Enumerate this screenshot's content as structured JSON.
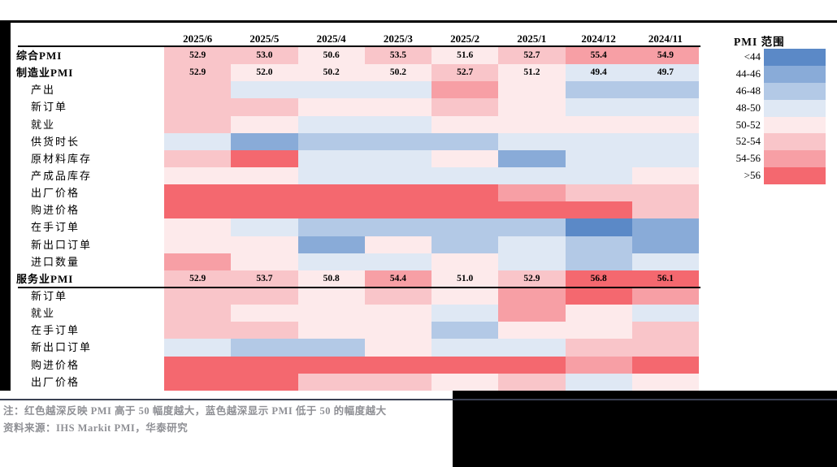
{
  "palette": {
    "b4": "#5b89c7",
    "b3": "#89abd8",
    "b2": "#b3c9e6",
    "b1": "#dfe8f4",
    "r1": "#fdeaeb",
    "r2": "#f9c5c9",
    "r3": "#f79fa5",
    "r4": "#f4686f"
  },
  "chart_data": {
    "type": "heatmap",
    "title": "",
    "columns": [
      "2025/6",
      "2025/5",
      "2025/4",
      "2025/3",
      "2025/2",
      "2025/1",
      "2024/12",
      "2024/11"
    ],
    "bin_labels": {
      "b4": "<44",
      "b3": "44-46",
      "b2": "46-48",
      "b1": "48-50",
      "r1": "50-52",
      "r2": "52-54",
      "r3": "54-56",
      "r4": ">56"
    },
    "rows": [
      {
        "label": "综合PMI",
        "bold": true,
        "values": [
          "52.9",
          "53.0",
          "50.6",
          "53.5",
          "51.6",
          "52.7",
          "55.4",
          "54.9"
        ],
        "classes": [
          "r2",
          "r2",
          "r1",
          "r2",
          "r1",
          "r2",
          "r3",
          "r3"
        ]
      },
      {
        "label": "制造业PMI",
        "bold": true,
        "values": [
          "52.9",
          "52.0",
          "50.2",
          "50.2",
          "52.7",
          "51.2",
          "49.4",
          "49.7"
        ],
        "classes": [
          "r2",
          "r1",
          "r1",
          "r1",
          "r2",
          "r1",
          "b1",
          "b1"
        ]
      },
      {
        "label": "产出",
        "bold": false,
        "values": null,
        "classes": [
          "r2",
          "b1",
          "b1",
          "b1",
          "r3",
          "r1",
          "b2",
          "b2"
        ]
      },
      {
        "label": "新订单",
        "bold": false,
        "values": null,
        "classes": [
          "r2",
          "r2",
          "r1",
          "r1",
          "r2",
          "r1",
          "b1",
          "b1"
        ]
      },
      {
        "label": "就业",
        "bold": false,
        "values": null,
        "classes": [
          "r2",
          "r1",
          "b1",
          "b1",
          "r1",
          "r1",
          "r1",
          "r1"
        ]
      },
      {
        "label": "供货时长",
        "bold": false,
        "values": null,
        "classes": [
          "b1",
          "b3",
          "b2",
          "b2",
          "b2",
          "b1",
          "b1",
          "b1"
        ]
      },
      {
        "label": "原材料库存",
        "bold": false,
        "values": null,
        "classes": [
          "r2",
          "r4",
          "b1",
          "b1",
          "r1",
          "b3",
          "b1",
          "b1"
        ]
      },
      {
        "label": "产成品库存",
        "bold": false,
        "values": null,
        "classes": [
          "r1",
          "r1",
          "b1",
          "b1",
          "b1",
          "b1",
          "b1",
          "r1"
        ]
      },
      {
        "label": "出厂价格",
        "bold": false,
        "values": null,
        "classes": [
          "r4",
          "r4",
          "r4",
          "r4",
          "r4",
          "r3",
          "r2",
          "r2"
        ]
      },
      {
        "label": "购进价格",
        "bold": false,
        "values": null,
        "classes": [
          "r4",
          "r4",
          "r4",
          "r4",
          "r4",
          "r4",
          "r4",
          "r2"
        ]
      },
      {
        "label": "在手订单",
        "bold": false,
        "values": null,
        "classes": [
          "r1",
          "b1",
          "b2",
          "b2",
          "b2",
          "b2",
          "b4",
          "b3"
        ]
      },
      {
        "label": "新出口订单",
        "bold": false,
        "values": null,
        "classes": [
          "r1",
          "r1",
          "b3",
          "r1",
          "b2",
          "b1",
          "b2",
          "b3"
        ]
      },
      {
        "label": "进口数量",
        "bold": false,
        "values": null,
        "classes": [
          "r3",
          "r1",
          "b1",
          "b1",
          "r1",
          "b1",
          "b2",
          "b1"
        ]
      },
      {
        "label": "服务业PMI",
        "bold": true,
        "values": [
          "52.9",
          "53.7",
          "50.8",
          "54.4",
          "51.0",
          "52.9",
          "56.8",
          "56.1"
        ],
        "classes": [
          "r2",
          "r2",
          "r1",
          "r3",
          "r1",
          "r2",
          "r4",
          "r4"
        ],
        "underline": true
      },
      {
        "label": "新订单",
        "bold": false,
        "values": null,
        "classes": [
          "r2",
          "r2",
          "r1",
          "r2",
          "r1",
          "r3",
          "r4",
          "r3"
        ]
      },
      {
        "label": "就业",
        "bold": false,
        "values": null,
        "classes": [
          "r2",
          "r1",
          "r1",
          "r1",
          "b1",
          "r3",
          "r1",
          "b1"
        ]
      },
      {
        "label": "在手订单",
        "bold": false,
        "values": null,
        "classes": [
          "r2",
          "r2",
          "r1",
          "r1",
          "b2",
          "r1",
          "r1",
          "r2"
        ]
      },
      {
        "label": "新出口订单",
        "bold": false,
        "values": null,
        "classes": [
          "b1",
          "b2",
          "b2",
          "r1",
          "b1",
          "b1",
          "r2",
          "r2"
        ]
      },
      {
        "label": "购进价格",
        "bold": false,
        "values": null,
        "classes": [
          "r4",
          "r4",
          "r4",
          "r4",
          "r4",
          "r4",
          "r3",
          "r4"
        ]
      },
      {
        "label": "出厂价格",
        "bold": false,
        "values": null,
        "classes": [
          "r4",
          "r4",
          "r2",
          "r2",
          "r1",
          "r2",
          "b1",
          "r1"
        ]
      }
    ]
  },
  "legend": {
    "title": "PMI 范围",
    "items": [
      {
        "label": "<44",
        "class": "b4"
      },
      {
        "label": "44-46",
        "class": "b3"
      },
      {
        "label": "46-48",
        "class": "b2"
      },
      {
        "label": "48-50",
        "class": "b1"
      },
      {
        "label": "50-52",
        "class": "r1"
      },
      {
        "label": "52-54",
        "class": "r2"
      },
      {
        "label": "54-56",
        "class": "r3"
      },
      {
        "label": ">56",
        "class": "r4"
      }
    ]
  },
  "notes": {
    "line1": "注：红色越深反映 PMI 高于 50 幅度越大，蓝色越深显示 PMI 低于 50 的幅度越大",
    "line2": "资料来源：IHS Markit PMI，华泰研究"
  }
}
